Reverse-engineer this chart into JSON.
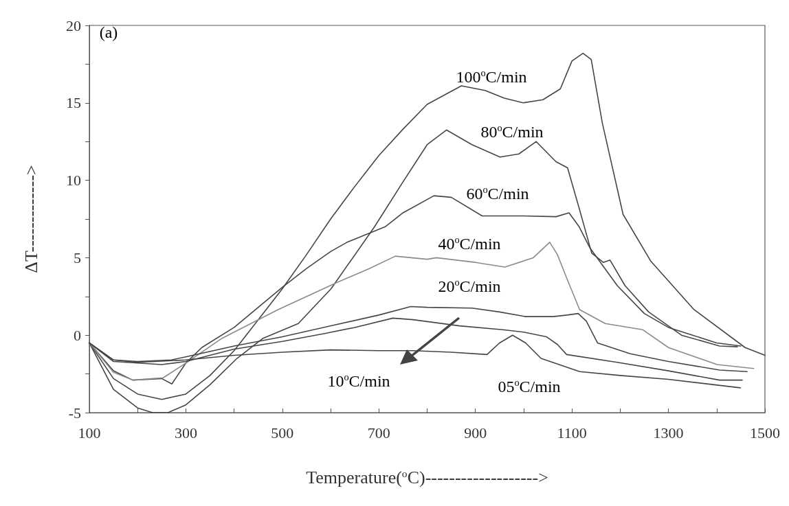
{
  "chart_data": {
    "type": "line",
    "xlabel": "Temperature($^{o}$C)------------------->",
    "ylabel": "ΔT------------->",
    "xlim": [
      100,
      1500
    ],
    "xticks": [
      100,
      {
        "value": 200,
        "label": null
      },
      300,
      {
        "value": 400,
        "label": null
      },
      500,
      {
        "value": 600,
        "label": null
      },
      700,
      {
        "value": 800,
        "label": null
      },
      900,
      {
        "value": 1000,
        "label": null
      },
      1100,
      {
        "value": 1200,
        "label": null
      },
      1300,
      {
        "value": 1400,
        "label": null
      },
      1500
    ],
    "ylim": [
      -5,
      20
    ],
    "yticks": [
      -5,
      {
        "value": -2.5,
        "label": null
      },
      0,
      {
        "value": 2.5,
        "label": null
      },
      5,
      {
        "value": 7.5,
        "label": null
      },
      10,
      {
        "value": 12.5,
        "label": null
      },
      15,
      {
        "value": 17.5,
        "label": null
      },
      20
    ],
    "grid": false,
    "marker": "none",
    "line_style": "solid",
    "series": [
      {
        "color": "#454545",
        "x": [
          100,
          150,
          200,
          250,
          300,
          350,
          400,
          450,
          500,
          550,
          600,
          650,
          700,
          750,
          800,
          871,
          920,
          960,
          999,
          1040,
          1076,
          1100,
          1123,
          1140,
          1163,
          1206,
          1263,
          1353,
          1459,
          1500
        ],
        "values": [
          -0.5,
          -2.8,
          -3.8,
          -4.15,
          -3.8,
          -2.6,
          -1.0,
          1.0,
          3.0,
          5.2,
          7.5,
          9.6,
          11.6,
          13.3,
          14.9,
          16.1,
          15.8,
          15.3,
          15.0,
          15.2,
          15.9,
          17.7,
          18.2,
          17.8,
          13.7,
          7.8,
          4.8,
          1.65,
          -0.8,
          -1.3
        ]
      },
      {
        "color": "#454545",
        "x": [
          100,
          150,
          200,
          231,
          263,
          300,
          350,
          406,
          460,
          533,
          601,
          691,
          750,
          800,
          840,
          893,
          951,
          990,
          1026,
          1067,
          1091,
          1115,
          1141,
          1165,
          1179,
          1210,
          1259,
          1327,
          1406,
          1443
        ],
        "values": [
          -0.5,
          -3.5,
          -4.7,
          -5.0,
          -5.0,
          -4.5,
          -3.2,
          -1.5,
          -0.2,
          0.75,
          3.0,
          7.0,
          9.9,
          12.3,
          13.25,
          12.3,
          11.5,
          11.7,
          12.5,
          11.2,
          10.8,
          8.2,
          5.3,
          4.7,
          4.85,
          3.2,
          1.5,
          0.0,
          -0.7,
          -0.75
        ]
      },
      {
        "color": "#454545",
        "x": [
          100,
          150,
          190,
          250,
          271,
          300,
          333,
          400,
          450,
          500,
          550,
          600,
          634,
          713,
          750,
          814,
          850,
          914,
          960,
          1000,
          1067,
          1094,
          1115,
          1137,
          1194,
          1250,
          1300,
          1350,
          1400,
          1450
        ],
        "values": [
          -0.5,
          -2.3,
          -2.9,
          -2.8,
          -3.15,
          -1.8,
          -0.8,
          0.5,
          1.8,
          3.1,
          4.3,
          5.4,
          6.0,
          7.0,
          7.9,
          9.0,
          8.9,
          7.7,
          7.7,
          7.7,
          7.65,
          7.9,
          7.0,
          5.65,
          3.2,
          1.4,
          0.5,
          0.0,
          -0.5,
          -0.7
        ]
      },
      {
        "color": "#8a8a8a",
        "x": [
          100,
          150,
          190,
          253,
          300,
          375,
          491,
          613,
          680,
          734,
          800,
          819,
          900,
          961,
          1020,
          1054,
          1070,
          1089,
          1116,
          1169,
          1247,
          1300,
          1401,
          1477
        ],
        "values": [
          -0.5,
          -2.4,
          -2.9,
          -2.75,
          -1.8,
          -0.2,
          1.65,
          3.4,
          4.3,
          5.1,
          4.9,
          5.0,
          4.7,
          4.4,
          5.0,
          6.0,
          5.2,
          3.7,
          1.65,
          0.75,
          0.35,
          -0.8,
          -1.9,
          -2.15
        ]
      },
      {
        "color": "#454545",
        "x": [
          100,
          150,
          200,
          270,
          300,
          400,
          500,
          607,
          700,
          766,
          800,
          893,
          950,
          1004,
          1061,
          1090,
          1113,
          1130,
          1153,
          1221,
          1300,
          1406,
          1463
        ],
        "values": [
          -0.5,
          -1.6,
          -1.7,
          -1.6,
          -1.4,
          -0.7,
          -0.1,
          0.65,
          1.3,
          1.85,
          1.8,
          1.75,
          1.5,
          1.2,
          1.2,
          1.3,
          1.4,
          0.9,
          -0.5,
          -1.2,
          -1.7,
          -2.25,
          -2.35
        ]
      },
      {
        "color": "#454545",
        "x": [
          100,
          150,
          250,
          300,
          400,
          500,
          586,
          650,
          729,
          771,
          867,
          957,
          1000,
          1047,
          1070,
          1089,
          1194,
          1300,
          1406,
          1453
        ],
        "values": [
          -0.5,
          -1.7,
          -1.9,
          -1.7,
          -0.9,
          -0.4,
          0.1,
          0.5,
          1.1,
          1.0,
          0.6,
          0.35,
          0.2,
          -0.1,
          -0.6,
          -1.25,
          -1.75,
          -2.3,
          -2.9,
          -2.9
        ]
      },
      {
        "color": "#454545",
        "x": [
          100,
          150,
          200,
          300,
          400,
          500,
          600,
          700,
          771,
          850,
          924,
          950,
          977,
          1004,
          1036,
          1116,
          1200,
          1300,
          1449
        ],
        "values": [
          -0.5,
          -1.6,
          -1.75,
          -1.6,
          -1.3,
          -1.1,
          -0.95,
          -1.0,
          -1.0,
          -1.1,
          -1.25,
          -0.5,
          0.0,
          -0.5,
          -1.5,
          -2.35,
          -2.6,
          -2.85,
          -3.4
        ]
      }
    ],
    "annotations": [
      "(a)",
      "100$^{o}$C/min",
      "80$^{o}$C/min",
      "60$^{o}$C/min",
      "40$^{o}$C/min",
      "20$^{o}$C/min",
      "10$^{o}$C/min",
      "05$^{o}$C/min"
    ]
  }
}
